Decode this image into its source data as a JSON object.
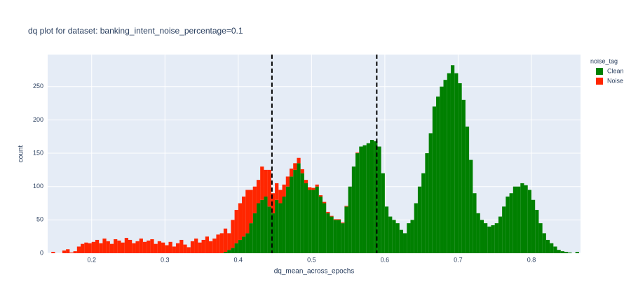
{
  "chart_data": {
    "type": "histogram",
    "title": "dq plot for dataset: banking_intent_noise_percentage=0.1",
    "x_label": "dq_mean_across_epochs",
    "y_label": "count",
    "legend_title": "noise_tag",
    "legend_position": "right",
    "stacked": true,
    "grid": true,
    "xlim": [
      0.14,
      0.867
    ],
    "ylim": [
      0,
      298
    ],
    "xticks": [
      0.2,
      0.3,
      0.4,
      0.5,
      0.6,
      0.7,
      0.8
    ],
    "yticks": [
      0,
      50,
      100,
      150,
      200,
      250
    ],
    "vlines": [
      0.446,
      0.589
    ],
    "bins": [
      0.145,
      0.15,
      0.155,
      0.16,
      0.165,
      0.17,
      0.175,
      0.18,
      0.185,
      0.19,
      0.195,
      0.2,
      0.205,
      0.21,
      0.215,
      0.22,
      0.225,
      0.23,
      0.235,
      0.24,
      0.245,
      0.25,
      0.255,
      0.26,
      0.265,
      0.27,
      0.275,
      0.28,
      0.285,
      0.29,
      0.295,
      0.3,
      0.305,
      0.31,
      0.315,
      0.32,
      0.325,
      0.33,
      0.335,
      0.34,
      0.345,
      0.35,
      0.355,
      0.36,
      0.365,
      0.37,
      0.375,
      0.38,
      0.385,
      0.39,
      0.395,
      0.4,
      0.405,
      0.41,
      0.415,
      0.42,
      0.425,
      0.43,
      0.435,
      0.44,
      0.445,
      0.45,
      0.455,
      0.46,
      0.465,
      0.47,
      0.475,
      0.48,
      0.485,
      0.49,
      0.495,
      0.5,
      0.505,
      0.51,
      0.515,
      0.52,
      0.525,
      0.53,
      0.535,
      0.54,
      0.545,
      0.55,
      0.555,
      0.56,
      0.565,
      0.57,
      0.575,
      0.58,
      0.585,
      0.59,
      0.595,
      0.6,
      0.605,
      0.61,
      0.615,
      0.62,
      0.625,
      0.63,
      0.635,
      0.64,
      0.645,
      0.65,
      0.655,
      0.66,
      0.665,
      0.67,
      0.675,
      0.68,
      0.685,
      0.69,
      0.695,
      0.7,
      0.705,
      0.71,
      0.715,
      0.72,
      0.725,
      0.73,
      0.735,
      0.74,
      0.745,
      0.75,
      0.755,
      0.76,
      0.765,
      0.77,
      0.775,
      0.78,
      0.785,
      0.79,
      0.795,
      0.8,
      0.805,
      0.81,
      0.815,
      0.82,
      0.825,
      0.83,
      0.835,
      0.84,
      0.845,
      0.85,
      0.855,
      0.86,
      0.865
    ],
    "series": [
      {
        "name": "Clean",
        "color": "#008000",
        "values": [
          0,
          0,
          0,
          0,
          0,
          0,
          0,
          0,
          0,
          0,
          0,
          0,
          0,
          0,
          0,
          0,
          0,
          0,
          0,
          0,
          0,
          0,
          0,
          0,
          0,
          0,
          0,
          0,
          0,
          0,
          0,
          0,
          0,
          0,
          0,
          0,
          0,
          0,
          0,
          0,
          0,
          0,
          0,
          0,
          0,
          0,
          0,
          2,
          5,
          8,
          15,
          20,
          25,
          30,
          45,
          60,
          75,
          80,
          85,
          70,
          60,
          80,
          75,
          85,
          100,
          115,
          125,
          135,
          120,
          105,
          95,
          95,
          100,
          85,
          75,
          60,
          55,
          50,
          50,
          45,
          70,
          100,
          130,
          150,
          160,
          162,
          165,
          170,
          168,
          160,
          120,
          70,
          55,
          50,
          45,
          35,
          30,
          45,
          50,
          75,
          100,
          120,
          150,
          180,
          220,
          235,
          250,
          260,
          270,
          282,
          270,
          255,
          230,
          190,
          140,
          90,
          60,
          50,
          45,
          40,
          42,
          45,
          55,
          70,
          85,
          90,
          100,
          100,
          105,
          102,
          95,
          80,
          65,
          45,
          30,
          20,
          15,
          10,
          5,
          3,
          2,
          1,
          0,
          2
        ]
      },
      {
        "name": "Noise",
        "color": "#ff2600",
        "values": [
          2,
          0,
          0,
          4,
          6,
          1,
          3,
          10,
          14,
          16,
          15,
          17,
          20,
          15,
          22,
          18,
          14,
          21,
          19,
          16,
          23,
          20,
          15,
          18,
          22,
          17,
          19,
          21,
          14,
          18,
          16,
          12,
          17,
          10,
          15,
          20,
          13,
          9,
          18,
          22,
          16,
          20,
          25,
          18,
          22,
          28,
          30,
          35,
          25,
          42,
          50,
          55,
          60,
          65,
          50,
          40,
          35,
          50,
          40,
          55,
          30,
          25,
          20,
          18,
          15,
          12,
          10,
          8,
          6,
          5,
          4,
          3,
          3,
          2,
          2,
          2,
          1,
          1,
          1,
          1,
          1,
          0,
          0,
          1,
          0,
          0,
          0,
          0,
          0,
          0,
          0,
          0,
          0,
          0,
          0,
          0,
          0,
          0,
          0,
          0,
          0,
          0,
          0,
          0,
          0,
          0,
          0,
          0,
          0,
          0,
          0,
          0,
          0,
          0,
          0,
          0,
          0,
          0,
          0,
          0,
          0,
          0,
          0,
          0,
          0,
          0,
          0,
          0,
          0,
          0,
          0,
          0,
          0,
          0,
          0,
          0,
          0,
          0,
          0,
          0,
          0,
          0,
          0,
          0
        ]
      }
    ]
  }
}
